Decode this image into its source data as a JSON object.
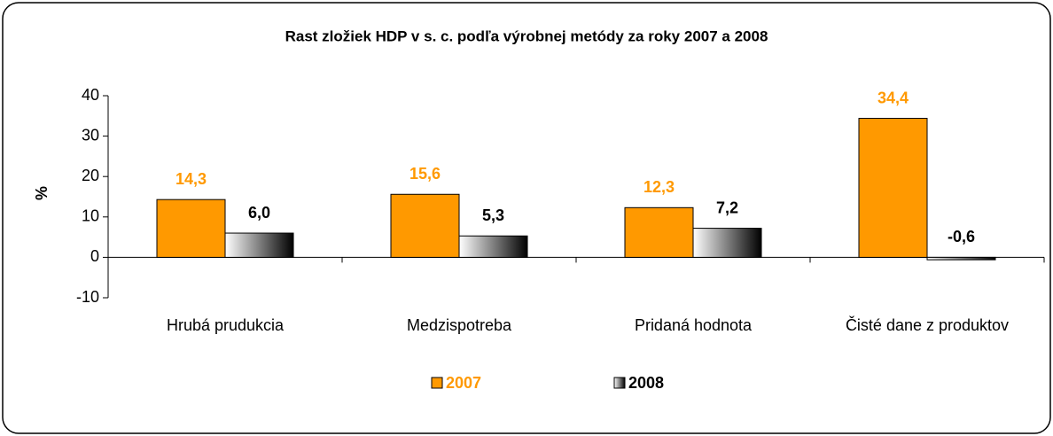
{
  "chart_data": {
    "type": "bar",
    "title": "Rast zložiek HDP v s. c. podľa výrobnej metódy za roky 2007 a 2008",
    "y_label": "%",
    "categories": [
      "Hrubá prudukcia",
      "Medzispotreba",
      "Pridaná hodnota",
      "Čisté dane z produktov"
    ],
    "series": [
      {
        "name": "2007",
        "color": "#ff9900",
        "values": [
          14.3,
          15.6,
          12.3,
          34.4
        ],
        "value_labels": [
          "14,3",
          "15,6",
          "12,3",
          "34,4"
        ]
      },
      {
        "name": "2008",
        "color": "#000000",
        "values": [
          6.0,
          5.3,
          7.2,
          -0.6
        ],
        "value_labels": [
          "6,0",
          "5,3",
          "7,2",
          "-0,6"
        ]
      }
    ],
    "ylim": [
      -10,
      40
    ],
    "yticks": [
      -10,
      0,
      10,
      20,
      30,
      40
    ],
    "legend": "bottom"
  }
}
